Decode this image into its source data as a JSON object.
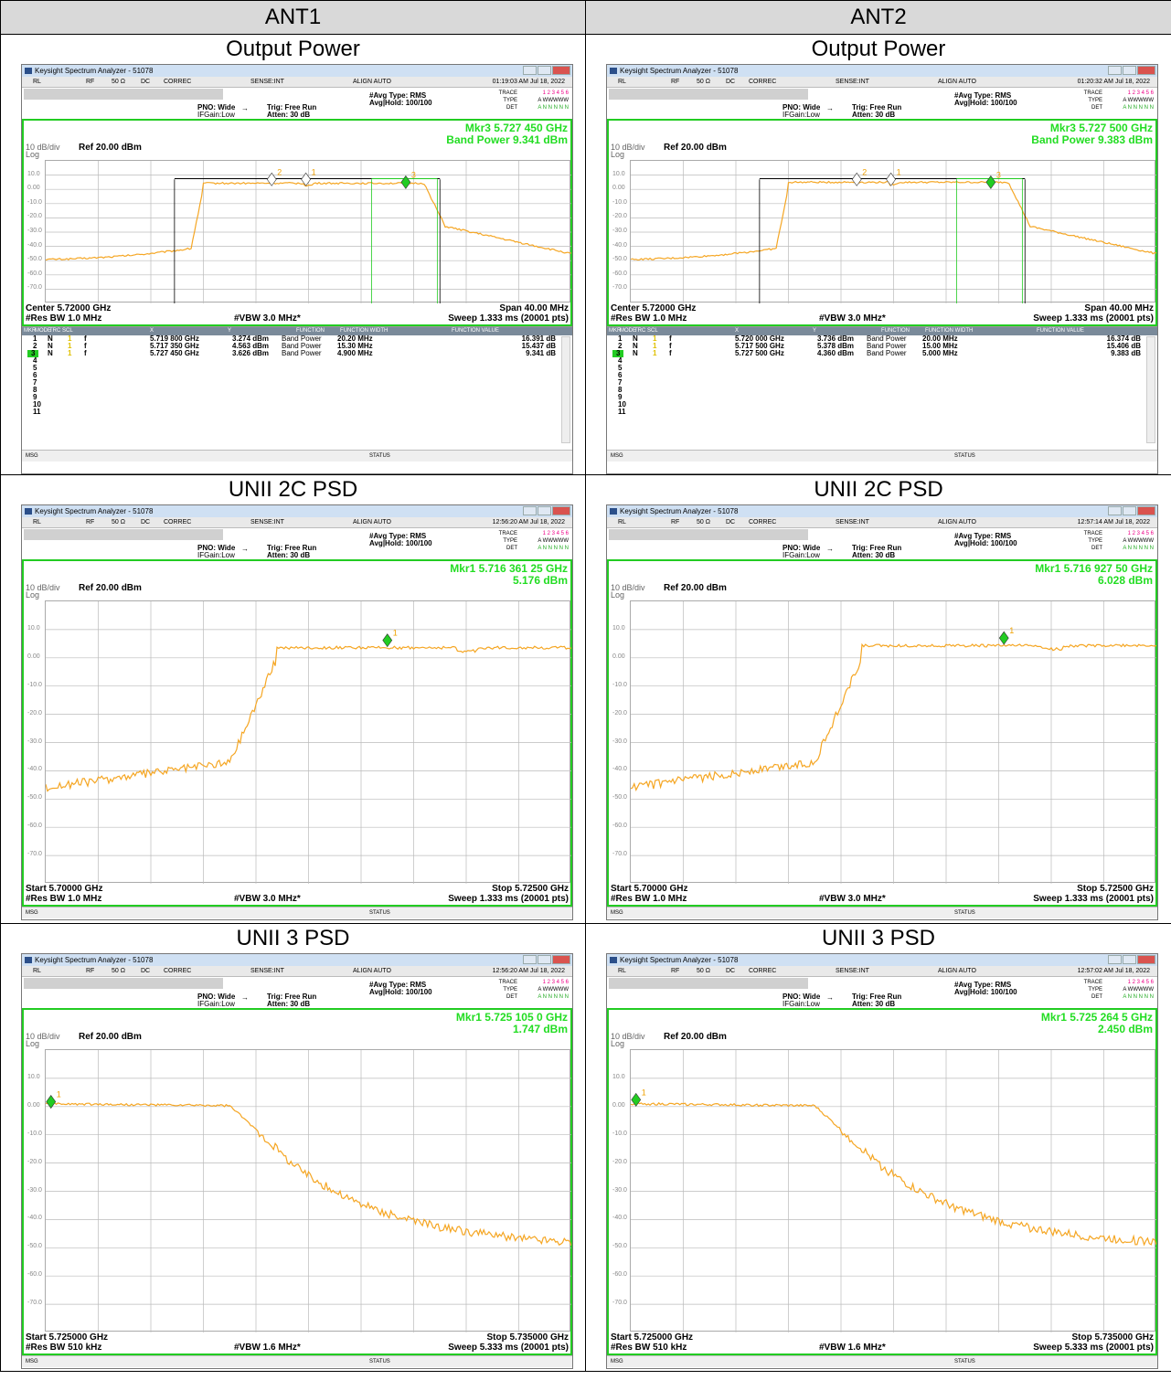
{
  "columns": [
    "ANT1",
    "ANT2"
  ],
  "app_title": "Keysight Spectrum Analyzer - 51078",
  "status_labels": {
    "rl": "RL",
    "rf": "RF",
    "ohm": "50 Ω",
    "dc": "DC",
    "correc": "CORREC",
    "sense": "SENSE:INT",
    "align": "ALIGN AUTO",
    "msg": "MSG",
    "status": "STATUS"
  },
  "ctrl_labels": {
    "pno": "PNO: Wide",
    "ifgain": "IFGain:Low",
    "trig": "Trig: Free Run",
    "atten": "Atten: 30 dB",
    "avg_type": "#Avg Type: RMS",
    "avg_hold": "Avg|Hold: 100/100",
    "trace": "TRACE",
    "type": "TYPE",
    "det": "DET",
    "trace_nums": "1 2 3 4 5 6",
    "type_val": "A WWWWW",
    "det_val": "A N N N N N"
  },
  "scale_label": "10 dB/div",
  "log_label": "Log",
  "ref_label": "Ref 20.00 dBm",
  "y_ticks": [
    "10.0",
    "0.00",
    "-10.0",
    "-20.0",
    "-30.0",
    "-40.0",
    "-50.0",
    "-60.0",
    "-70.0"
  ],
  "table_headers": [
    "MKR",
    "MODE",
    "TRC",
    "SCL",
    "X",
    "Y",
    "FUNCTION",
    "FUNCTION WIDTH",
    "FUNCTION VALUE"
  ],
  "rows": [
    {
      "caption": "Output Power",
      "cells": [
        {
          "time": "01:19:03 AM Jul 18, 2022",
          "mkr_line1": "Mkr3 5.727 450 GHz",
          "mkr_line2": "Band Power 9.341 dBm",
          "bottom_left1": "Center 5.72000 GHz",
          "bottom_right1": "Span 40.00 MHz",
          "bottom_left2": "#Res BW 1.0 MHz",
          "bottom_mid": "#VBW 3.0 MHz*",
          "bottom_right2": "Sweep  1.333 ms (20001 pts)",
          "markers": [
            {
              "n": "1",
              "mode": "N",
              "trc": "1",
              "scl": "f",
              "x": "5.719 800 GHz",
              "y": "3.274 dBm",
              "fn": "Band Power",
              "fw": "20.20 MHz",
              "fv": "16.391 dB"
            },
            {
              "n": "2",
              "mode": "N",
              "trc": "1",
              "scl": "f",
              "x": "5.717 350 GHz",
              "y": "4.563 dBm",
              "fn": "Band Power",
              "fw": "15.30 MHz",
              "fv": "15.437 dB"
            },
            {
              "n": "3",
              "mode": "N",
              "trc": "1",
              "scl": "f",
              "x": "5.727 450 GHz",
              "y": "3.626 dBm",
              "fn": "Band Power",
              "fw": "4.900 MHz",
              "fv": "9.341 dB"
            }
          ],
          "empty_rows": [
            "4",
            "5",
            "6",
            "7",
            "8",
            "9",
            "10",
            "11"
          ]
        },
        {
          "time": "01:20:32 AM Jul 18, 2022",
          "mkr_line1": "Mkr3 5.727 500 GHz",
          "mkr_line2": "Band Power 9.383 dBm",
          "bottom_left1": "Center 5.72000 GHz",
          "bottom_right1": "Span 40.00 MHz",
          "bottom_left2": "#Res BW 1.0 MHz",
          "bottom_mid": "#VBW 3.0 MHz*",
          "bottom_right2": "Sweep  1.333 ms (20001 pts)",
          "markers": [
            {
              "n": "1",
              "mode": "N",
              "trc": "1",
              "scl": "f",
              "x": "5.720 000 GHz",
              "y": "3.736 dBm",
              "fn": "Band Power",
              "fw": "20.00 MHz",
              "fv": "16.374 dB"
            },
            {
              "n": "2",
              "mode": "N",
              "trc": "1",
              "scl": "f",
              "x": "5.717 500 GHz",
              "y": "5.378 dBm",
              "fn": "Band Power",
              "fw": "15.00 MHz",
              "fv": "15.406 dB"
            },
            {
              "n": "3",
              "mode": "N",
              "trc": "1",
              "scl": "f",
              "x": "5.727 500 GHz",
              "y": "4.360 dBm",
              "fn": "Band Power",
              "fw": "5.000 MHz",
              "fv": "9.383 dB"
            }
          ],
          "empty_rows": [
            "4",
            "5",
            "6",
            "7",
            "8",
            "9",
            "10",
            "11"
          ]
        }
      ]
    },
    {
      "caption": "UNII 2C PSD",
      "cells": [
        {
          "time": "12:56:20 AM Jul 18, 2022",
          "mkr_line1": "Mkr1 5.716 361 25 GHz",
          "mkr_line2": "5.176 dBm",
          "bottom_left1": "Start 5.70000 GHz",
          "bottom_right1": "Stop 5.72500 GHz",
          "bottom_left2": "#Res BW 1.0 MHz",
          "bottom_mid": "#VBW 3.0 MHz*",
          "bottom_right2": "Sweep  1.333 ms (20001 pts)"
        },
        {
          "time": "12:57:14 AM Jul 18, 2022",
          "mkr_line1": "Mkr1 5.716 927 50 GHz",
          "mkr_line2": "6.028 dBm",
          "bottom_left1": "Start 5.70000 GHz",
          "bottom_right1": "Stop 5.72500 GHz",
          "bottom_left2": "#Res BW 1.0 MHz",
          "bottom_mid": "#VBW 3.0 MHz*",
          "bottom_right2": "Sweep  1.333 ms (20001 pts)"
        }
      ]
    },
    {
      "caption": "UNII 3 PSD",
      "cells": [
        {
          "time": "12:56:20 AM Jul 18, 2022",
          "mkr_line1": "Mkr1 5.725 105 0 GHz",
          "mkr_line2": "1.747 dBm",
          "bottom_left1": "Start 5.725000 GHz",
          "bottom_right1": "Stop 5.735000 GHz",
          "bottom_left2": "#Res BW 510 kHz",
          "bottom_mid": "#VBW 1.6 MHz*",
          "bottom_right2": "Sweep  5.333 ms (20001 pts)"
        },
        {
          "time": "12:57:02 AM Jul 18, 2022",
          "mkr_line1": "Mkr1 5.725 264 5 GHz",
          "mkr_line2": "2.450 dBm",
          "bottom_left1": "Start 5.725000 GHz",
          "bottom_right1": "Stop 5.735000 GHz",
          "bottom_left2": "#Res BW 510 kHz",
          "bottom_mid": "#VBW 1.6 MHz*",
          "bottom_right2": "Sweep  5.333 ms (20001 pts)"
        }
      ]
    }
  ],
  "colors": {
    "trace": "#f5a623",
    "marker": "#22cc22",
    "screen_border": "#22cc22",
    "header_bg": "#d9d9d9"
  }
}
